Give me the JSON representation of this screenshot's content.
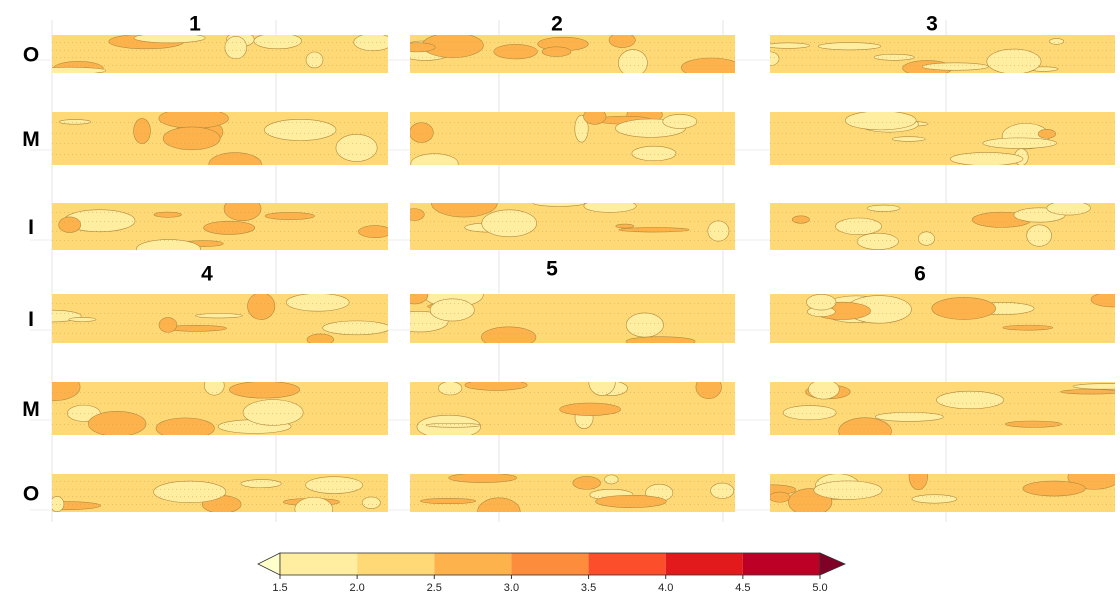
{
  "chart_data": {
    "type": "contour",
    "panel_titles": [
      "1",
      "2",
      "3",
      "4",
      "5",
      "6"
    ],
    "row_labels": [
      "O",
      "M",
      "I",
      "I",
      "M",
      "O"
    ],
    "colorbar": {
      "ticks": [
        1.5,
        {
          "value": 2,
          "label": "2.0"
        },
        2.5,
        {
          "value": 3,
          "label": "3.0"
        },
        3.5,
        {
          "value": 4,
          "label": "4.0"
        },
        4.5,
        {
          "value": 5,
          "label": "5.0"
        }
      ],
      "colors": [
        "#ffffcc",
        "#ffeda0",
        "#fed976",
        "#feb24c",
        "#fd8d3c",
        "#fc4e2a",
        "#e31a1c",
        "#bd0026",
        "#800026"
      ]
    }
  }
}
